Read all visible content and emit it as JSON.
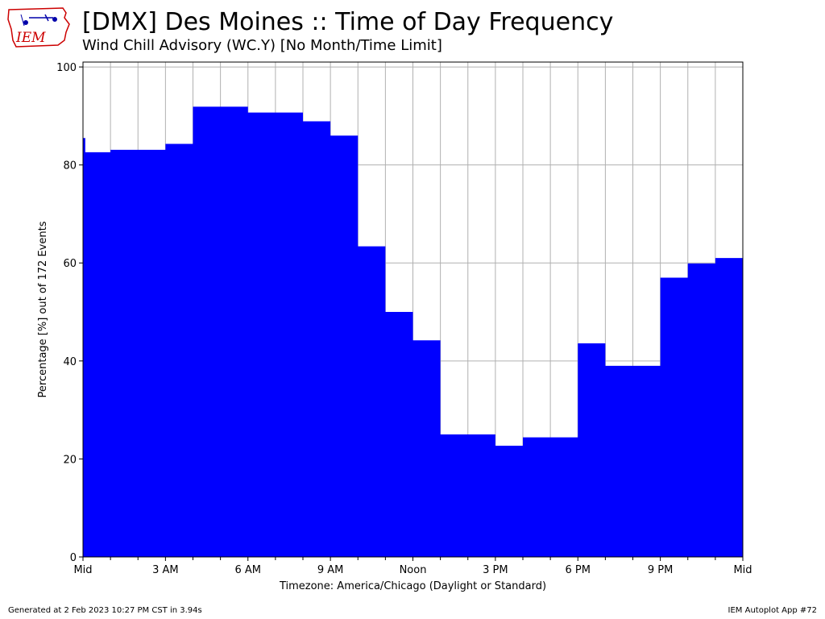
{
  "header": {
    "title": "[DMX] Des Moines :: Time of Day Frequency",
    "subtitle": "Wind Chill Advisory (WC.Y) [No Month/Time Limit]"
  },
  "logo": {
    "text": "IEM"
  },
  "footer": {
    "generated": "Generated at 2 Feb 2023 10:27 PM CST in 3.94s",
    "app": "IEM Autoplot App #72"
  },
  "colors": {
    "bar": "#0000ff",
    "grid": "#b0b0b0",
    "logo": "#cc0000"
  },
  "chart_data": {
    "type": "area",
    "title": "[DMX] Des Moines :: Time of Day Frequency",
    "subtitle": "Wind Chill Advisory (WC.Y) [No Month/Time Limit]",
    "xlabel": "Timezone: America/Chicago (Daylight or Standard)",
    "ylabel": "Percentage [%] out of 172 Events",
    "xlim": [
      0,
      1440
    ],
    "ylim": [
      0,
      101
    ],
    "x_unit": "minutes after midnight",
    "x_ticks": [
      0,
      180,
      360,
      540,
      720,
      900,
      1080,
      1260,
      1440
    ],
    "x_tick_labels": [
      "Mid",
      "3 AM",
      "6 AM",
      "9 AM",
      "Noon",
      "3 PM",
      "6 PM",
      "9 PM",
      "Mid"
    ],
    "x_minor_ticks": [
      60,
      120,
      240,
      300,
      420,
      480,
      600,
      660,
      780,
      840,
      960,
      1020,
      1140,
      1200,
      1320,
      1380
    ],
    "y_ticks": [
      0,
      20,
      40,
      60,
      80,
      100
    ],
    "y_tick_labels": [
      "0",
      "20",
      "40",
      "60",
      "80",
      "100"
    ],
    "grid": true,
    "series": [
      {
        "color": "#0000ff",
        "x": [
          0,
          5,
          60,
          120,
          180,
          240,
          330,
          360,
          420,
          480,
          540,
          600,
          660,
          720,
          780,
          900,
          960,
          1080,
          1140,
          1200,
          1260,
          1320,
          1380,
          1440
        ],
        "y": [
          85.5,
          82.6,
          83.1,
          83.1,
          84.3,
          91.9,
          91.9,
          90.7,
          90.7,
          88.9,
          86.0,
          63.4,
          50.0,
          44.2,
          25.0,
          22.7,
          24.4,
          43.6,
          39.0,
          39.0,
          57.0,
          59.9,
          61.0,
          61.0
        ]
      }
    ]
  }
}
